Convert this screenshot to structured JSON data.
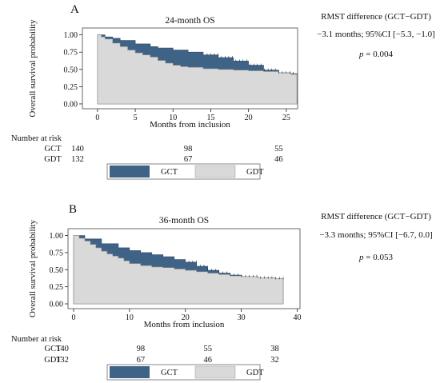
{
  "colors": {
    "gct": "#3f6287",
    "gdt": "#d9d9d9",
    "axis": "#222222"
  },
  "chart_data": [
    {
      "type": "area",
      "panel_label": "A",
      "title": "24-month OS",
      "xlabel": "Months from inclusion",
      "ylabel": "Overall survival probability",
      "xlim": [
        -2,
        26.5
      ],
      "ylim": [
        -0.07,
        1.1
      ],
      "xticks": [
        "0",
        "5",
        "10",
        "15",
        "20",
        "25"
      ],
      "xtick_values": [
        0,
        5,
        10,
        15,
        20,
        25
      ],
      "yticks": [
        "0.00",
        "0.25",
        "0.50",
        "0.75",
        "1.00"
      ],
      "ytick_values": [
        0,
        0.25,
        0.5,
        0.75,
        1.0
      ],
      "grid": false,
      "series": [
        {
          "name": "GCT",
          "x": [
            0,
            1,
            2,
            3,
            5,
            7,
            8,
            10,
            12,
            14,
            16,
            18,
            20,
            22,
            24,
            25.6,
            26.4
          ],
          "y": [
            1.0,
            0.97,
            0.95,
            0.92,
            0.87,
            0.83,
            0.81,
            0.78,
            0.75,
            0.71,
            0.67,
            0.62,
            0.56,
            0.49,
            0.45,
            0.44,
            0.44
          ]
        },
        {
          "name": "GDT",
          "x": [
            0,
            0.5,
            1,
            2,
            3,
            4,
            5,
            6,
            7,
            8,
            9,
            10,
            11,
            12,
            14,
            16,
            18,
            20,
            22,
            24,
            25.6,
            26.4
          ],
          "y": [
            1.0,
            0.97,
            0.94,
            0.88,
            0.83,
            0.78,
            0.74,
            0.71,
            0.68,
            0.63,
            0.59,
            0.56,
            0.54,
            0.53,
            0.51,
            0.5,
            0.49,
            0.48,
            0.47,
            0.45,
            0.43,
            0.43
          ]
        }
      ],
      "risk_table": {
        "header": "Number at risk",
        "columns_x": [
          0,
          12,
          24
        ],
        "rows": [
          {
            "label": "GCT",
            "values": [
              "140",
              "98",
              "55"
            ]
          },
          {
            "label": "GDT",
            "values": [
              "132",
              "67",
              "46"
            ]
          }
        ]
      },
      "annotation": {
        "heading": "RMST difference (GCT−GDT)",
        "estimate": "−3.1 months; 95%CI [−5.3, −1.0]",
        "p_symbol": "p",
        "p_rest": " = 0.004"
      },
      "legend": [
        "GCT",
        "GDT"
      ]
    },
    {
      "type": "area",
      "panel_label": "B",
      "title": "36-month OS",
      "xlabel": "Months from inclusion",
      "ylabel": "Overall survival probability",
      "xlim": [
        -1,
        40.5
      ],
      "ylim": [
        -0.07,
        1.1
      ],
      "xticks": [
        "0",
        "10",
        "20",
        "30",
        "40"
      ],
      "xtick_values": [
        0,
        10,
        20,
        30,
        40
      ],
      "yticks": [
        "0.00",
        "0.25",
        "0.50",
        "0.75",
        "1.00"
      ],
      "ytick_values": [
        0,
        0.25,
        0.5,
        0.75,
        1.0
      ],
      "grid": false,
      "series": [
        {
          "name": "GCT",
          "x": [
            0,
            2,
            5,
            8,
            10,
            12,
            14,
            16,
            18,
            20,
            22,
            24,
            26,
            28,
            30,
            33,
            36,
            37.5
          ],
          "y": [
            1.0,
            0.95,
            0.88,
            0.82,
            0.78,
            0.75,
            0.72,
            0.69,
            0.65,
            0.61,
            0.55,
            0.49,
            0.45,
            0.42,
            0.4,
            0.38,
            0.37,
            0.37
          ]
        },
        {
          "name": "GDT",
          "x": [
            0,
            1,
            2,
            3,
            4,
            5,
            6,
            7,
            8,
            9,
            10,
            12,
            14,
            16,
            18,
            20,
            22,
            24,
            26,
            28,
            30,
            33,
            36,
            37.5
          ],
          "y": [
            1.0,
            0.96,
            0.92,
            0.87,
            0.82,
            0.77,
            0.73,
            0.7,
            0.67,
            0.63,
            0.59,
            0.56,
            0.54,
            0.53,
            0.51,
            0.49,
            0.47,
            0.45,
            0.43,
            0.41,
            0.4,
            0.38,
            0.37,
            0.37
          ]
        }
      ],
      "risk_table": {
        "header": "Number at risk",
        "columns_x": [
          0,
          12,
          24,
          36
        ],
        "rows": [
          {
            "label": "GCT",
            "values": [
              "140",
              "98",
              "55",
              "38"
            ]
          },
          {
            "label": "GDT",
            "values": [
              "132",
              "67",
              "46",
              "32"
            ]
          }
        ]
      },
      "annotation": {
        "heading": "RMST difference (GCT−GDT)",
        "estimate": "−3.3 months; 95%CI [−6.7, 0.0]",
        "p_symbol": "p",
        "p_rest": " = 0.053"
      },
      "legend": [
        "GCT",
        "GDT"
      ]
    }
  ]
}
